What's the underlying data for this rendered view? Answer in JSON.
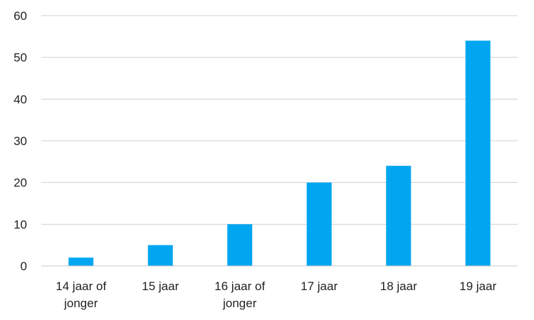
{
  "chart_data": {
    "type": "bar",
    "categories": [
      "14 jaar of jonger",
      "15 jaar",
      "16 jaar of jonger",
      "17 jaar",
      "18 jaar",
      "19 jaar"
    ],
    "category_lines": [
      [
        "14 jaar of",
        "jonger"
      ],
      [
        "15 jaar"
      ],
      [
        "16 jaar of",
        "jonger"
      ],
      [
        "17 jaar"
      ],
      [
        "18 jaar"
      ],
      [
        "19 jaar"
      ]
    ],
    "values": [
      2,
      5,
      10,
      20,
      24,
      54
    ],
    "ylim": [
      0,
      60
    ],
    "yticks": [
      0,
      10,
      20,
      30,
      40,
      50,
      60
    ],
    "grid": true,
    "bar_color": "#00a6f0"
  }
}
